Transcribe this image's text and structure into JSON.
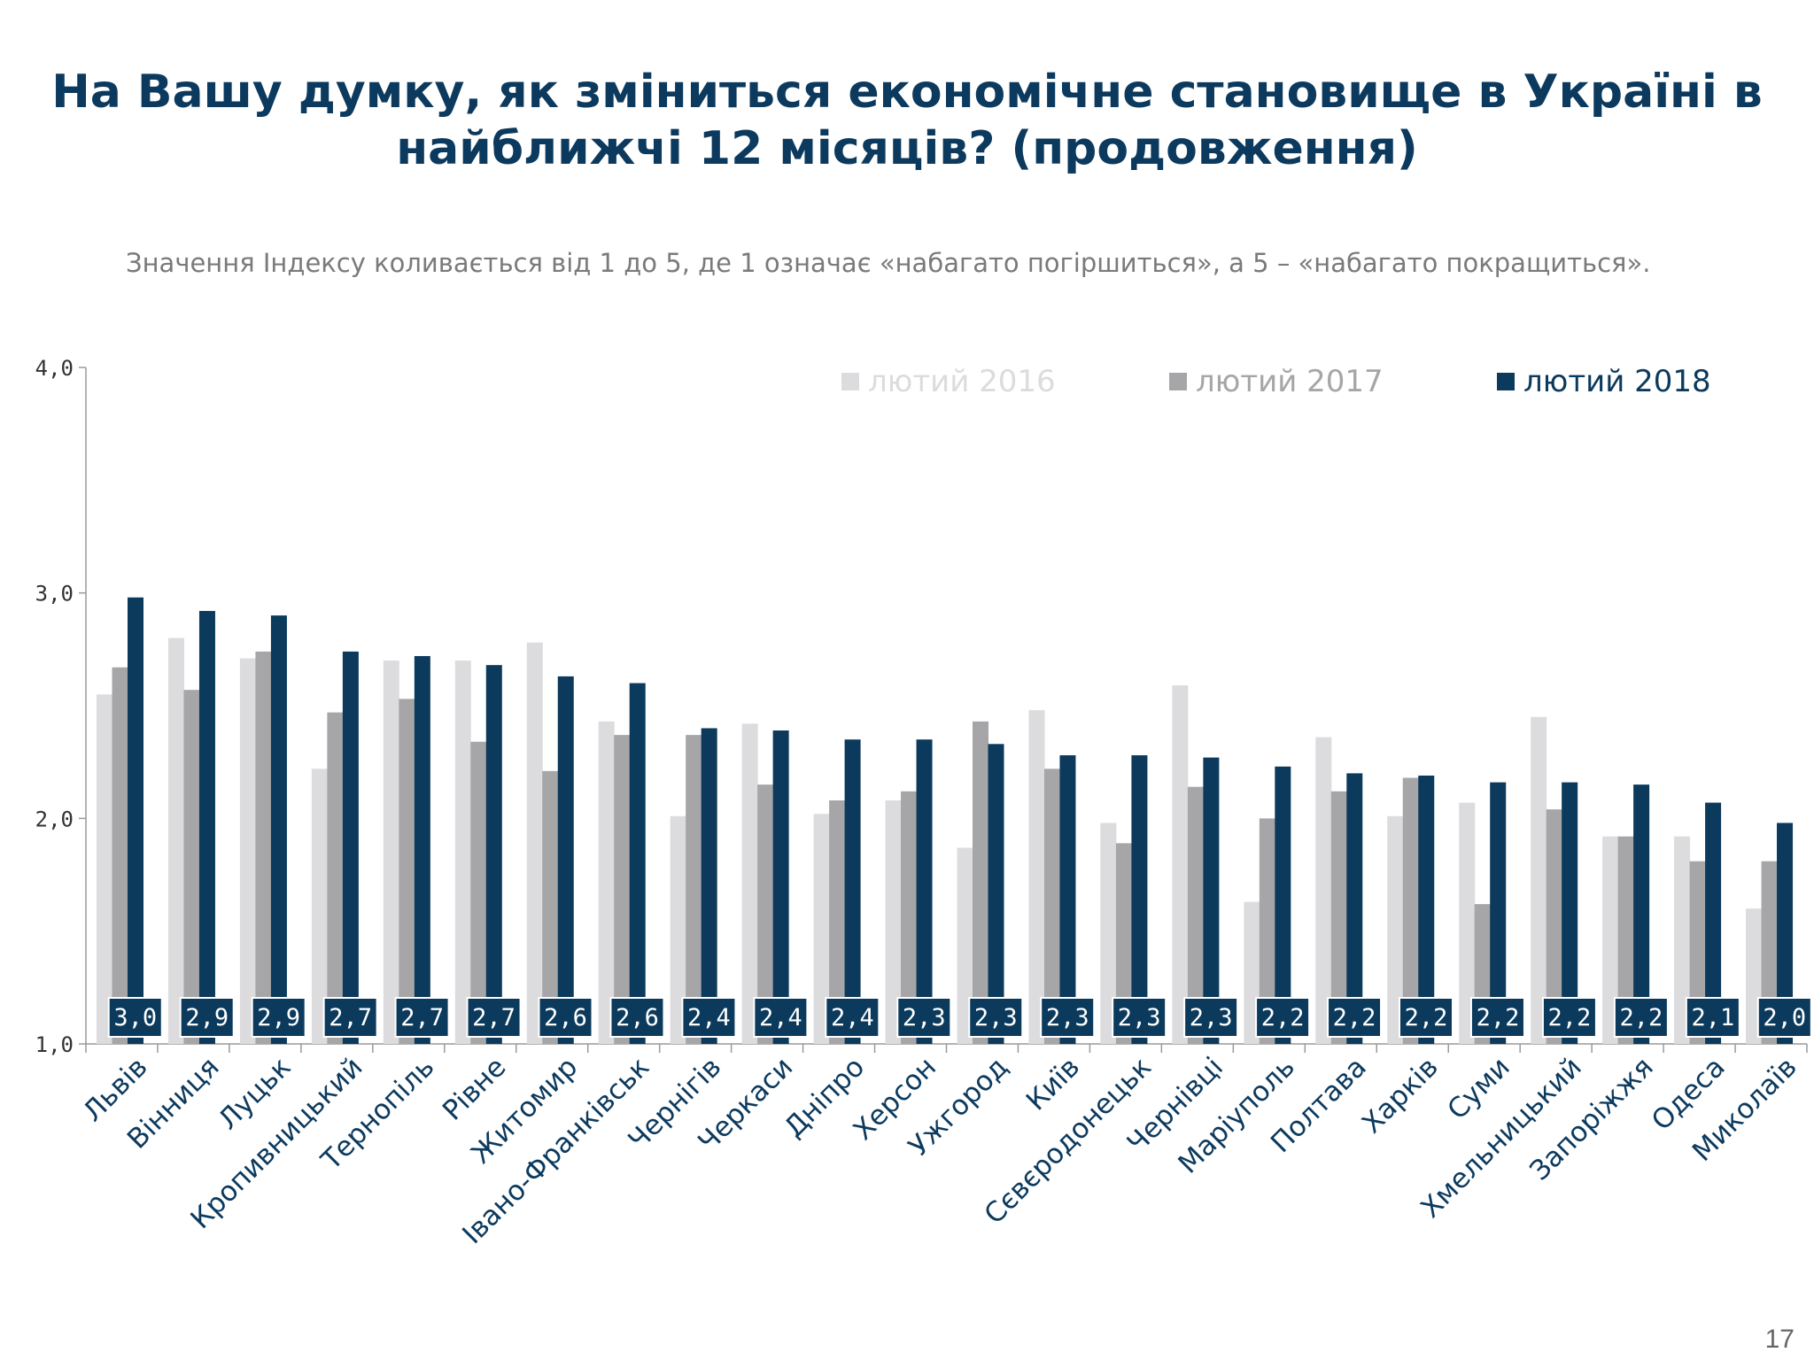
{
  "slide": {
    "title_line1": "На Вашу думку, як зміниться економічне становище в Україні в",
    "title_line2": "найближчі 12 місяців? (продовження)",
    "subtitle": "Значення Індексу коливається від 1 до 5, де 1 означає «набагато погіршиться», а 5 – «набагато покращиться».",
    "page_number": "17"
  },
  "colors": {
    "s2016": "#dcdcde",
    "s2017": "#a6a6a8",
    "s2018": "#0b3a5c",
    "axis": "#9a9a9a",
    "label_text": "#0c3a5e"
  },
  "chart_data": {
    "type": "bar",
    "ylim": [
      1.0,
      4.0
    ],
    "yticks": [
      "1,0",
      "2,0",
      "3,0",
      "4,0"
    ],
    "ytick_values": [
      1,
      2,
      3,
      4
    ],
    "grid": false,
    "legend_position": "top-right",
    "categories": [
      "Львів",
      "Вінниця",
      "Луцьк",
      "Кропивницький",
      "Тернопіль",
      "Рівне",
      "Житомир",
      "Івано-Франківськ",
      "Чернігів",
      "Черкаси",
      "Дніпро",
      "Херсон",
      "Ужгород",
      "Київ",
      "Сєвєродонецьк",
      "Чернівці",
      "Маріуполь",
      "Полтава",
      "Харків",
      "Суми",
      "Хмельницький",
      "Запоріжжя",
      "Одеса",
      "Миколаїв"
    ],
    "series": [
      {
        "name": "лютий 2016",
        "values": [
          2.55,
          2.8,
          2.71,
          2.22,
          2.7,
          2.7,
          2.78,
          2.43,
          2.01,
          2.42,
          2.02,
          2.08,
          1.87,
          2.48,
          1.98,
          2.59,
          1.63,
          2.36,
          2.01,
          2.07,
          2.45,
          1.92,
          1.92,
          1.6
        ]
      },
      {
        "name": "лютий 2017",
        "values": [
          2.67,
          2.57,
          2.74,
          2.47,
          2.53,
          2.34,
          2.21,
          2.37,
          2.37,
          2.15,
          2.08,
          2.12,
          2.43,
          2.22,
          1.89,
          2.14,
          2.0,
          2.12,
          2.18,
          1.62,
          2.04,
          1.92,
          1.81,
          1.81
        ]
      },
      {
        "name": "лютий 2018",
        "values": [
          2.98,
          2.92,
          2.9,
          2.74,
          2.72,
          2.68,
          2.63,
          2.6,
          2.4,
          2.39,
          2.35,
          2.35,
          2.33,
          2.28,
          2.28,
          2.27,
          2.23,
          2.2,
          2.19,
          2.16,
          2.16,
          2.15,
          2.07,
          1.98
        ]
      }
    ],
    "data_labels": [
      "3,0",
      "2,9",
      "2,9",
      "2,7",
      "2,7",
      "2,7",
      "2,6",
      "2,6",
      "2,4",
      "2,4",
      "2,4",
      "2,3",
      "2,3",
      "2,3",
      "2,3",
      "2,3",
      "2,2",
      "2,2",
      "2,2",
      "2,2",
      "2,2",
      "2,2",
      "2,1",
      "2,0"
    ]
  }
}
